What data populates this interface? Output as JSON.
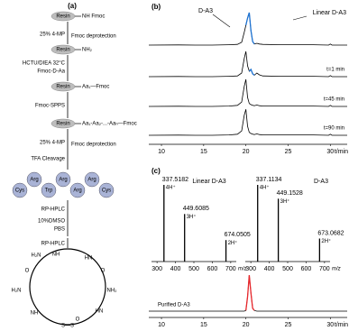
{
  "scheme": {
    "panel": "(a)",
    "resins": [
      {
        "resin": "Resin",
        "group": "NH Fmoc"
      },
      {
        "resin": "Resin",
        "group": "NH₂"
      },
      {
        "resin": "Resin",
        "group": "Aa₁—Fmoc"
      },
      {
        "resin": "Resin",
        "group": "Aa₁-Aa₂-...-Aaₙ—Fmoc"
      }
    ],
    "reagents": [
      "25% 4-MP",
      "HCTU/DIEA 32°C",
      "Fmoc-D-Aa",
      "Fmoc-SPPS",
      "25% 4-MP",
      "TFA Cleavage",
      "RP-HPLC",
      "10%DMSO",
      "PBS",
      "RP-HPLC"
    ],
    "notes": [
      "Fmoc deprotection",
      "Fmoc deprotection"
    ],
    "beads": [
      "Cys",
      "Arg",
      "Trp",
      "Arg",
      "Arg",
      "Arg",
      "Cys"
    ],
    "ring_labels": [
      "H₂N",
      "NH",
      "HN",
      "O",
      "NH₂",
      "HN",
      "O",
      "NH",
      "H₂N",
      "O",
      "S—S"
    ]
  },
  "chart_data": [
    {
      "type": "line",
      "panel": "(b)",
      "x": [
        8.5,
        12,
        14,
        16,
        18,
        19,
        19.5,
        19.8,
        20,
        20.2,
        20.4,
        20.6,
        20.8,
        21,
        21.3,
        21.6,
        22,
        24,
        28,
        29.8,
        30,
        30.2,
        32
      ],
      "xlim": [
        8.5,
        32
      ],
      "xticks": [
        10,
        15,
        20,
        25,
        30
      ],
      "xlabel": "t/min",
      "annotations": [
        "D-A3",
        "Linear D-A3"
      ],
      "series": [
        {
          "color": "#000000",
          "values": [
            0,
            0.5,
            0,
            0,
            1,
            2,
            8,
            35,
            55,
            75,
            90,
            40,
            10,
            3,
            5,
            3,
            2,
            1,
            1,
            0,
            3,
            0,
            0
          ]
        },
        {
          "color": "#1e73d2",
          "values": [
            null,
            null,
            null,
            null,
            null,
            null,
            null,
            null,
            55,
            75,
            90,
            40,
            10,
            3,
            null,
            null,
            null,
            null,
            null,
            null,
            null,
            null,
            null
          ]
        },
        {
          "name": "t=1 min",
          "color": "#000000",
          "values": [
            0,
            0.5,
            0,
            0,
            1,
            2,
            10,
            50,
            70,
            30,
            15,
            20,
            8,
            4,
            10,
            5,
            2,
            1,
            1,
            0,
            3,
            0,
            0
          ]
        },
        {
          "color": "#1e73d2",
          "values": [
            null,
            null,
            null,
            null,
            null,
            null,
            null,
            null,
            null,
            null,
            15,
            20,
            8,
            4,
            null,
            null,
            null,
            null,
            null,
            null,
            null,
            null,
            null
          ]
        },
        {
          "name": "t=45 min",
          "color": "#000000",
          "values": [
            0,
            0.5,
            0,
            0,
            1,
            3,
            12,
            55,
            75,
            25,
            8,
            5,
            3,
            2,
            4,
            2,
            1,
            1,
            1,
            0,
            3,
            0,
            0
          ]
        },
        {
          "name": "t=90 min",
          "color": "#000000",
          "values": [
            0,
            0.5,
            0,
            0,
            1,
            3,
            12,
            55,
            72,
            25,
            8,
            5,
            3,
            2,
            4,
            2,
            1,
            1,
            1,
            0,
            3,
            0,
            0
          ]
        }
      ]
    },
    {
      "type": "bar",
      "title": "Linear D-A3",
      "x": [
        337.5182,
        449.6085,
        674.0505
      ],
      "values": [
        100,
        62,
        28
      ],
      "annotations": [
        "4H⁺",
        "3H⁺",
        "2H⁺"
      ],
      "xlim": [
        270,
        730
      ],
      "xticks": [
        300,
        400,
        500,
        600,
        700
      ],
      "xlabel": "m/z",
      "color": "#000000"
    },
    {
      "type": "bar",
      "title": "D-A3",
      "x": [
        337.1134,
        449.1528,
        673.0682
      ],
      "values": [
        100,
        82,
        30
      ],
      "annotations": [
        "4H⁺",
        "3H⁺",
        "2H⁺"
      ],
      "xlim": [
        270,
        730
      ],
      "xticks": [
        300,
        400,
        500,
        600,
        700
      ],
      "xlabel": "m/z",
      "color": "#000000"
    },
    {
      "type": "line",
      "panel": "(c)",
      "x": [
        8.5,
        12,
        14,
        16,
        18,
        19,
        19.5,
        19.8,
        20,
        20.2,
        20.4,
        20.6,
        20.8,
        21,
        21.3,
        21.6,
        22,
        24,
        28,
        29.8,
        30,
        30.2,
        32
      ],
      "xlim": [
        8.5,
        32
      ],
      "xticks": [
        10,
        15,
        20,
        25,
        30
      ],
      "xlabel": "t/min",
      "series": [
        {
          "name": "Purified D-A3",
          "color": "#000000",
          "values": [
            0,
            0,
            0,
            0,
            0,
            0,
            0,
            0,
            2,
            40,
            100,
            50,
            8,
            2,
            0,
            0,
            0,
            0,
            0,
            0,
            0,
            0,
            0
          ]
        },
        {
          "color": "#e8262b",
          "values": [
            null,
            null,
            null,
            null,
            null,
            null,
            null,
            null,
            2,
            40,
            100,
            50,
            8,
            2,
            null,
            null,
            null,
            null,
            null,
            null,
            null,
            null,
            null
          ]
        }
      ]
    }
  ]
}
